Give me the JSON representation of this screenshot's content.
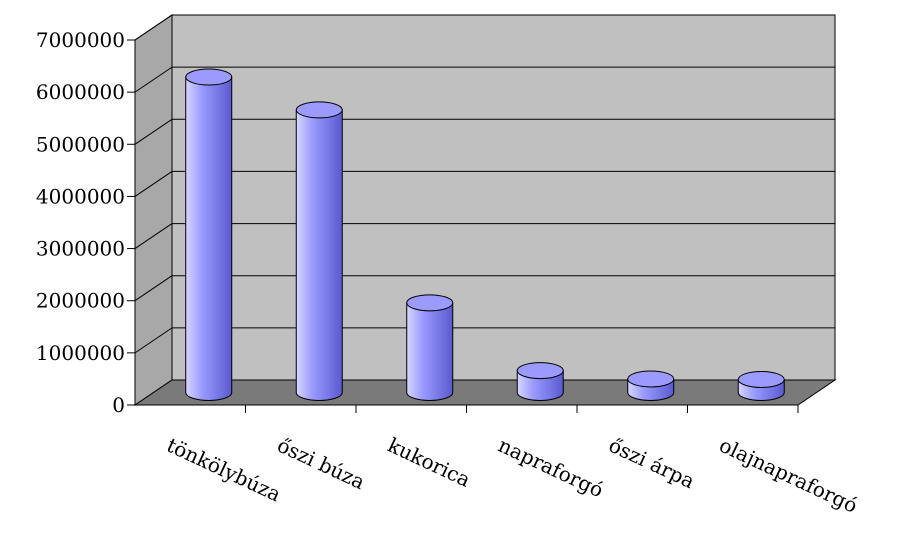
{
  "chart_data": {
    "type": "bar",
    "style": "3d-cylinder",
    "categories": [
      "tönkölybúza",
      "őszi búza",
      "kukorica",
      "napraforgó",
      "őszi árpa",
      "olajnapraforgó"
    ],
    "values": [
      6050000,
      5420000,
      1720000,
      420000,
      260000,
      250000
    ],
    "ylim": [
      0,
      7000000
    ],
    "yticks": [
      "0",
      "1000000",
      "2000000",
      "3000000",
      "4000000",
      "5000000",
      "6000000",
      "7000000"
    ],
    "grid": true,
    "legend": "none",
    "colors": {
      "bar": "#9a9aff",
      "bar_light": "#d6d6ff",
      "bar_dark": "#5a5ad0",
      "back_wall": "#c0c0c0",
      "side_wall": "#a8a8a8",
      "floor": "#7a7a7a",
      "grid": "#000000"
    }
  }
}
